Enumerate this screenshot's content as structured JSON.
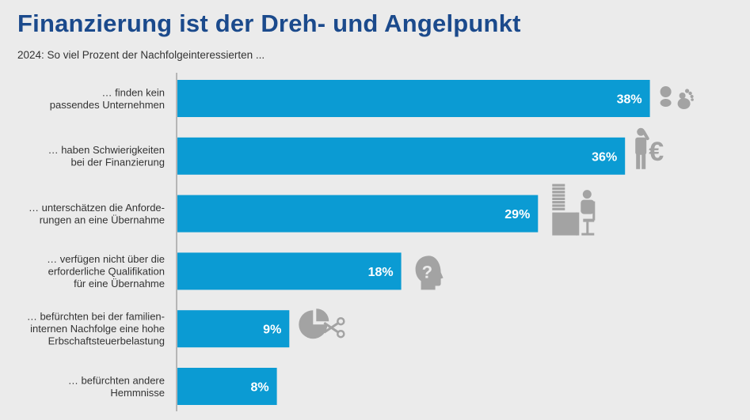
{
  "colors": {
    "title": "#1b4a8c",
    "bar": "#0b9bd3",
    "icon": "#a3a3a3",
    "axis": "#9a9a9a",
    "background": "#ebebeb"
  },
  "chart_data": {
    "type": "bar",
    "orientation": "horizontal",
    "title": "Finanzierung ist der Dreh- und Angelpunkt",
    "subtitle": "2024: So viel Prozent der Nachfolgeinteressierten ...",
    "categories": [
      [
        "… finden kein",
        "passendes Unternehmen"
      ],
      [
        "… haben Schwierigkeiten",
        "bei der Finanzierung"
      ],
      [
        "… unterschätzen die Anforde-",
        "rungen an eine Übernahme"
      ],
      [
        "… verfügen nicht über die",
        "erforderliche Qualifikation",
        "für eine Übernahme"
      ],
      [
        "… befürchten bei der familien-",
        "internen Nachfolge eine hohe",
        "Erbschaftsteuerbelastung"
      ],
      [
        "… befürchten andere",
        "Hemmnisse"
      ]
    ],
    "values": [
      38,
      36,
      29,
      18,
      9,
      8
    ],
    "value_labels": [
      "38%",
      "36%",
      "29%",
      "18%",
      "9%",
      "8%"
    ],
    "icons": [
      "footprints-icon",
      "person-euro-icon",
      "desk-worker-icon",
      "head-question-icon",
      "pie-scissors-icon",
      ""
    ],
    "unit": "%",
    "xlim": [
      0,
      40
    ],
    "grid": false,
    "legend": "none"
  }
}
